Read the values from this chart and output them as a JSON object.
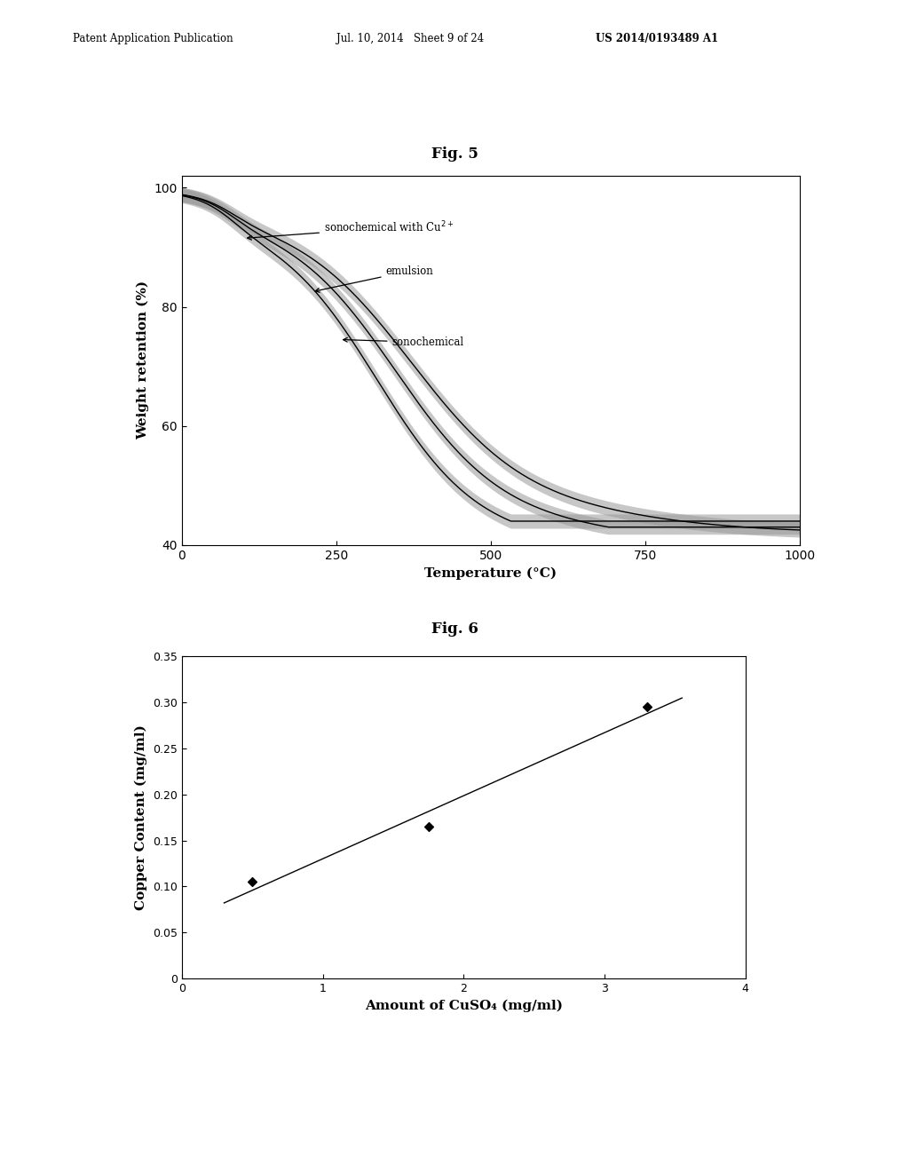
{
  "fig5_title": "Fig. 5",
  "fig6_title": "Fig. 6",
  "header_left": "Patent Application Publication",
  "header_mid": "Jul. 10, 2014   Sheet 9 of 24",
  "header_right": "US 2014/0193489 A1",
  "fig5": {
    "xlabel": "Temperature (°C)",
    "ylabel": "Weight retention (%)",
    "xlim": [
      0,
      1000
    ],
    "ylim": [
      40,
      102
    ],
    "xticks": [
      0,
      250,
      500,
      750,
      1000
    ],
    "yticks": [
      40,
      60,
      80,
      100
    ]
  },
  "fig6": {
    "xlabel": "Amount of CuSO₄ (mg/ml)",
    "ylabel": "Copper Content (mg/ml)",
    "xlim": [
      0,
      4
    ],
    "ylim": [
      0,
      0.35
    ],
    "xticks": [
      0,
      1,
      2,
      3,
      4
    ],
    "yticks": [
      0,
      0.05,
      0.1,
      0.15,
      0.2,
      0.25,
      0.3,
      0.35
    ],
    "data_x": [
      0.5,
      1.75,
      3.3
    ],
    "data_y": [
      0.105,
      0.165,
      0.295
    ],
    "line_x_start": 0.3,
    "line_x_end": 3.55
  }
}
